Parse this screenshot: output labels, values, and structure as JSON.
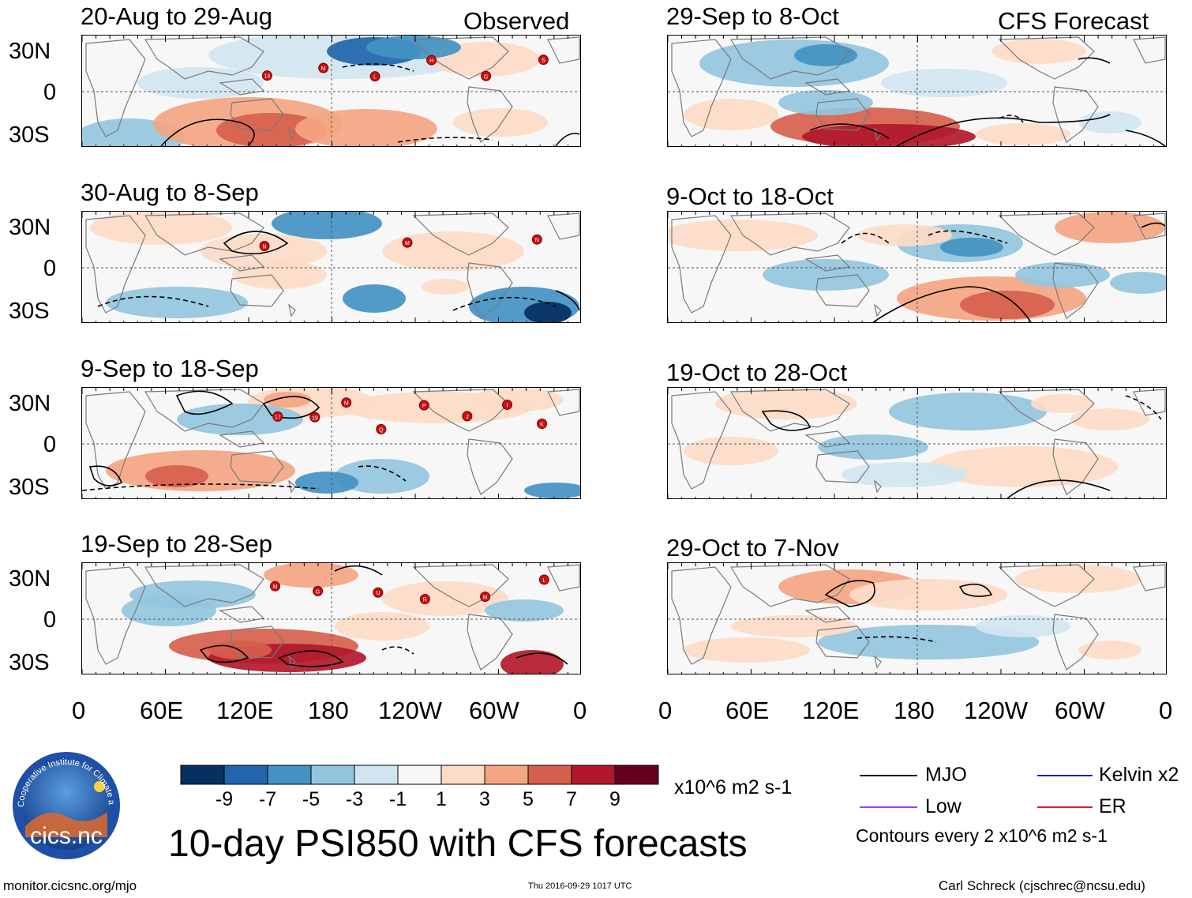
{
  "figure": {
    "title": "10-day PSI850 with CFS forecasts",
    "observed_label": "Observed",
    "forecast_label": "CFS Forecast",
    "footer_left": "monitor.cicsnc.org/mjo",
    "footer_center": "Thu 2016-09-29 1017 UTC",
    "footer_right": "Carl Schreck (cjschrec@ncsu.edu)",
    "logo_text": "cics.nc",
    "logo_ring_text": "Cooperative Institute for Climate and Satellites"
  },
  "chart_data": [
    {
      "type": "heatmap",
      "column": "observed",
      "title": "20-Aug to 29-Aug",
      "storms": [
        "14",
        "M",
        "L",
        "H",
        "G",
        "S"
      ]
    },
    {
      "type": "heatmap",
      "column": "observed",
      "title": "30-Aug to 8-Sep",
      "storms": [
        "N",
        "M",
        "N"
      ]
    },
    {
      "type": "heatmap",
      "column": "observed",
      "title": "9-Sep to 18-Sep",
      "storms": [
        "17",
        "19",
        "M",
        "Q",
        "P",
        "J",
        "I",
        "K"
      ]
    },
    {
      "type": "heatmap",
      "column": "observed",
      "title": "19-Sep to 28-Sep",
      "storms": [
        "M",
        "G",
        "U",
        "R",
        "M",
        "L"
      ]
    },
    {
      "type": "heatmap",
      "column": "forecast",
      "title": "29-Sep to 8-Oct",
      "storms": []
    },
    {
      "type": "heatmap",
      "column": "forecast",
      "title": "9-Oct to 18-Oct",
      "storms": []
    },
    {
      "type": "heatmap",
      "column": "forecast",
      "title": "19-Oct to 28-Oct",
      "storms": []
    },
    {
      "type": "heatmap",
      "column": "forecast",
      "title": "29-Oct to 7-Nov",
      "storms": []
    }
  ],
  "axes": {
    "lat_labels": [
      "30N",
      "0",
      "30S"
    ],
    "lon_labels": [
      "0",
      "60E",
      "120E",
      "180",
      "120W",
      "60W",
      "0"
    ],
    "lat_range": [
      "40S",
      "40N"
    ],
    "lon_range": [
      "0",
      "360"
    ]
  },
  "colorbar": {
    "colors": [
      "#053061",
      "#2166ac",
      "#4393c3",
      "#92c5de",
      "#d1e5f0",
      "#f7f7f7",
      "#fddbc7",
      "#f4a582",
      "#d6604d",
      "#b2182b",
      "#67001f"
    ],
    "tick_labels": [
      "-9",
      "-7",
      "-5",
      "-3",
      "-1",
      "1",
      "3",
      "5",
      "7",
      "9"
    ],
    "units": "x10^6 m2 s-1"
  },
  "legend": {
    "items": [
      {
        "label": "MJO",
        "color": "#000000"
      },
      {
        "label": "Kelvin x2",
        "color": "#1a1adc"
      },
      {
        "label": "Low",
        "color": "#a040e0"
      },
      {
        "label": "ER",
        "color": "#e02020"
      }
    ],
    "note": "Contours every 2 x10^6 m2 s-1"
  }
}
